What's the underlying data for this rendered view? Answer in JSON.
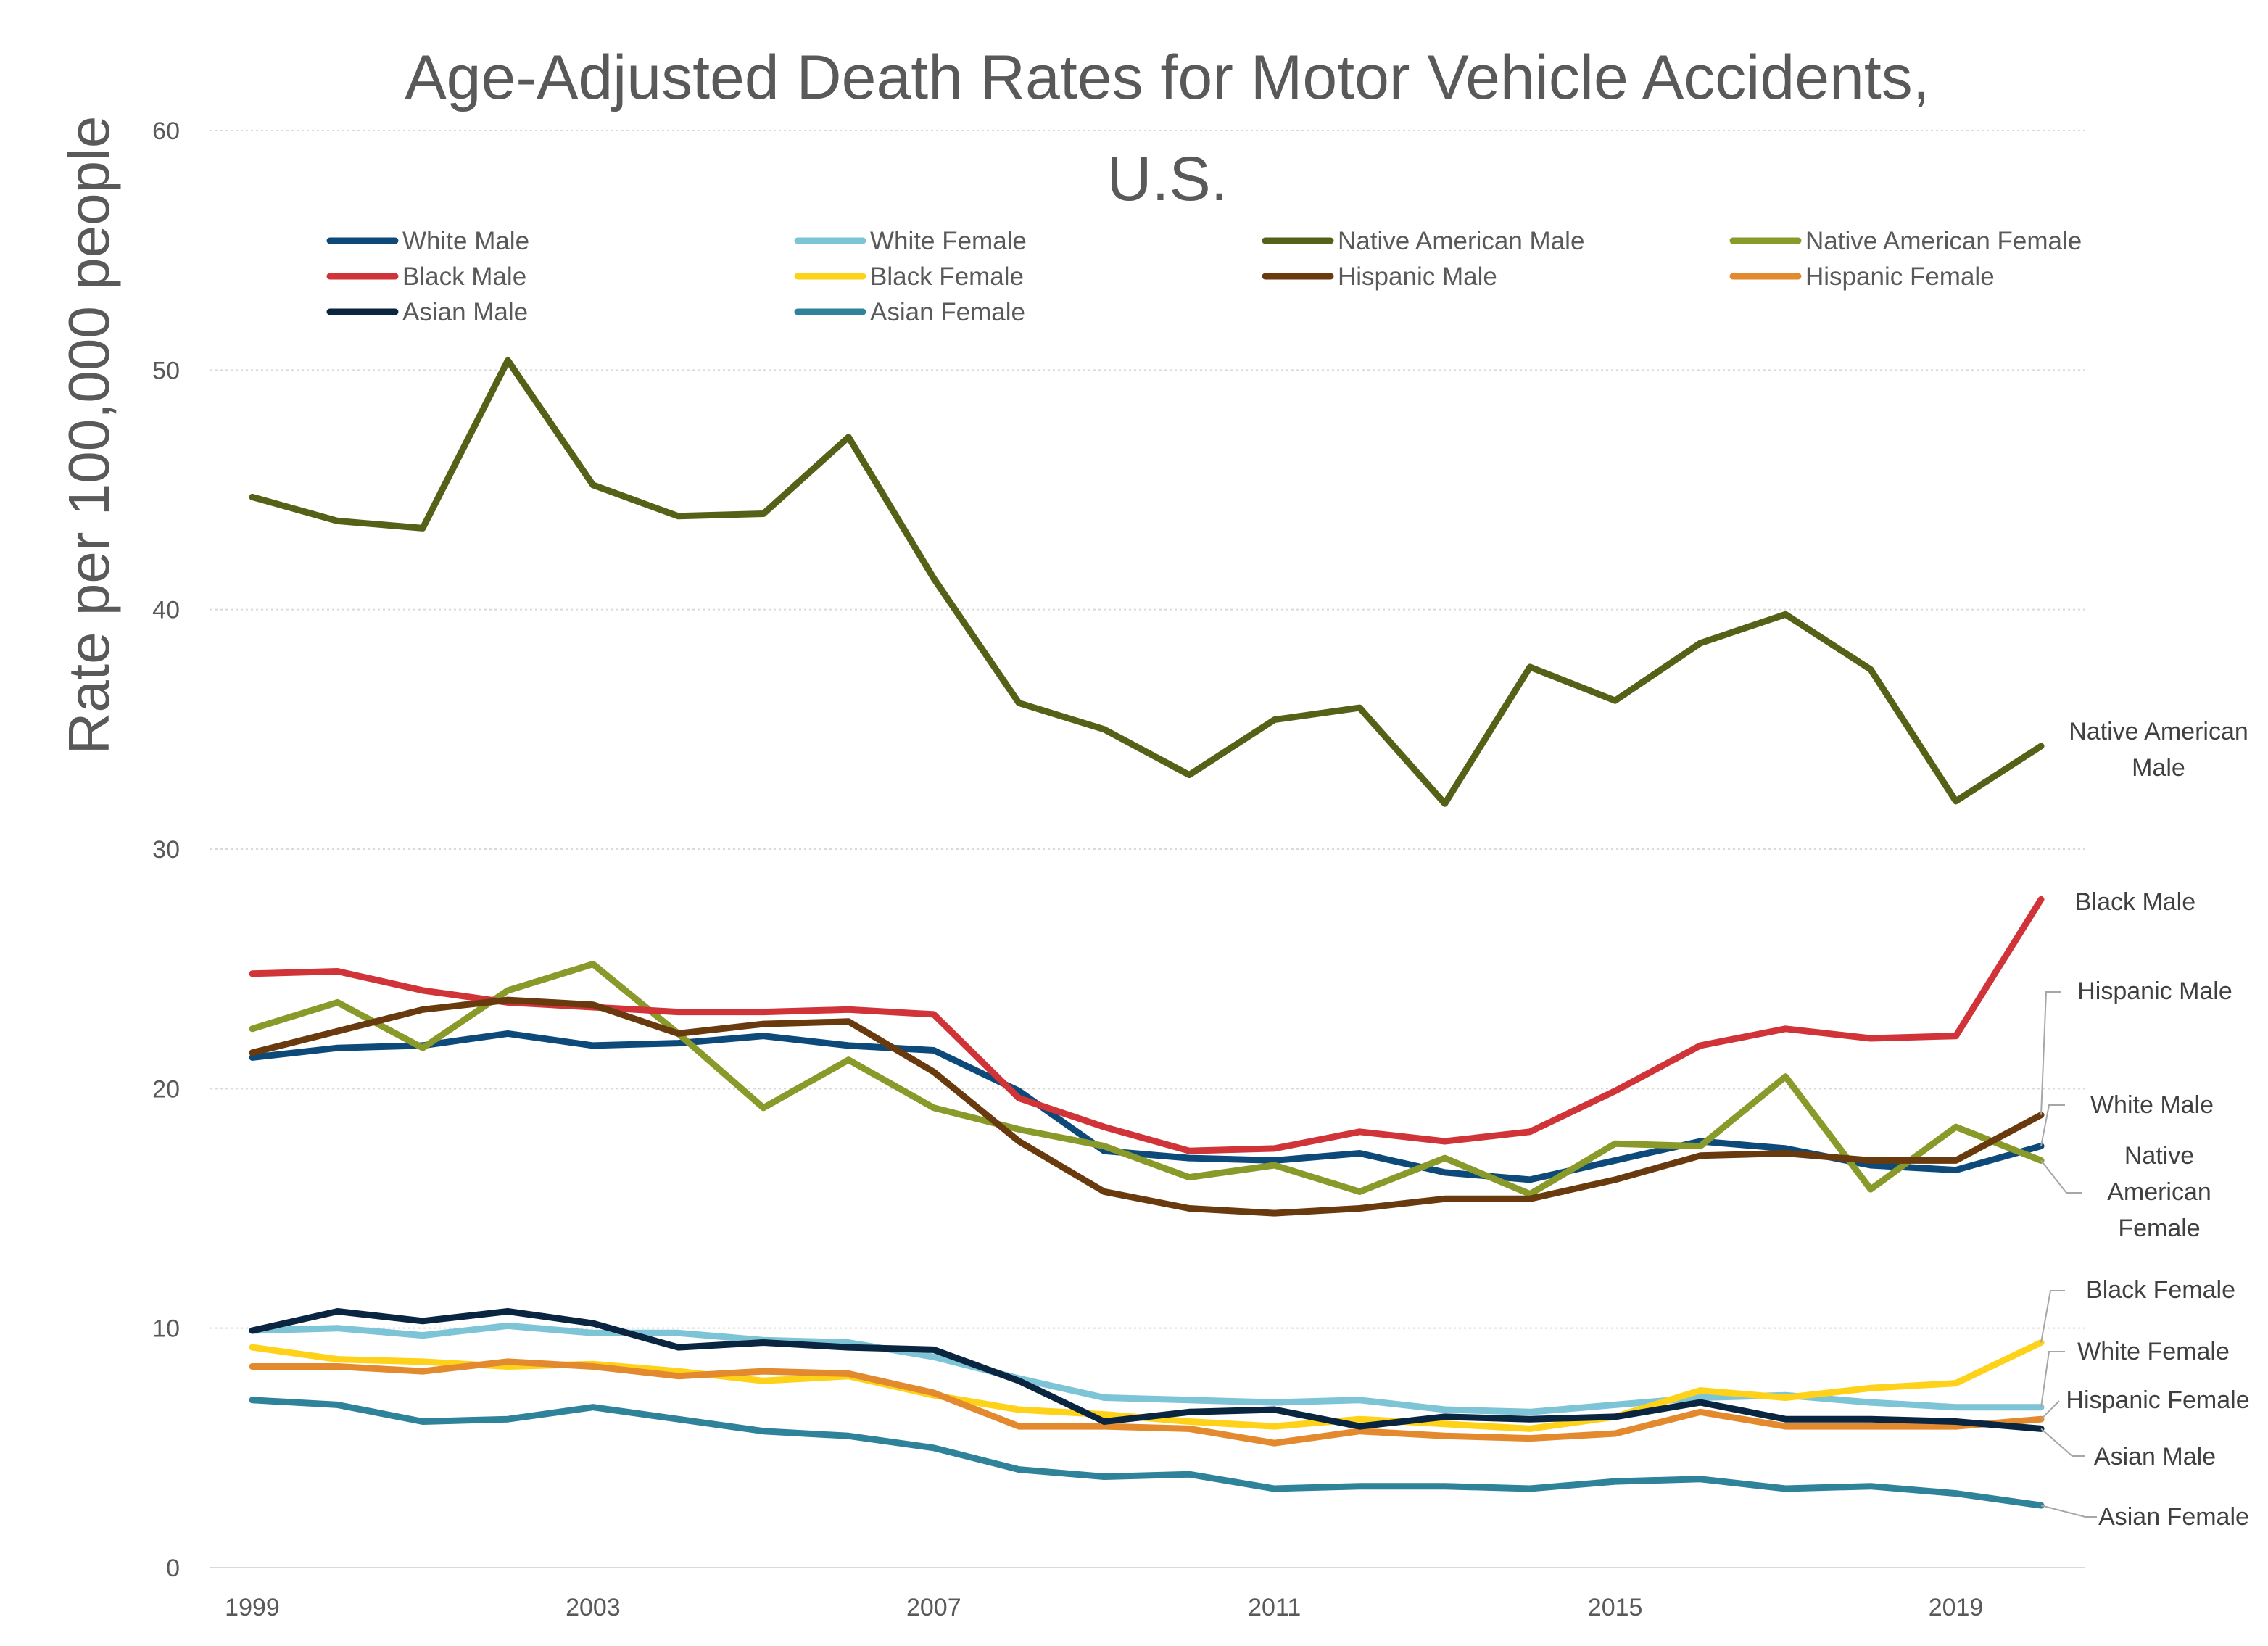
{
  "chart_data": {
    "type": "line",
    "title": "Age-Adjusted Death Rates for Motor Vehicle Accidents, U.S.",
    "title_lines": [
      "Age-Adjusted Death Rates for Motor Vehicle Accidents,",
      "U.S."
    ],
    "ylabel": "Rate per 100,000 people",
    "xlabel": "",
    "ylim": [
      0,
      60
    ],
    "yticks": [
      0,
      10,
      20,
      30,
      40,
      50,
      60
    ],
    "xticks": [
      1999,
      2003,
      2007,
      2011,
      2015,
      2019
    ],
    "grid": true,
    "legend_position": "top",
    "x": [
      1999,
      2000,
      2001,
      2002,
      2003,
      2004,
      2005,
      2006,
      2007,
      2008,
      2009,
      2010,
      2011,
      2012,
      2013,
      2014,
      2015,
      2016,
      2017,
      2018,
      2019,
      2020
    ],
    "series": [
      {
        "name": "White Male",
        "color": "#0d4a7a",
        "values": [
          21.3,
          21.7,
          21.8,
          22.3,
          21.8,
          21.9,
          22.2,
          21.8,
          21.6,
          19.9,
          17.4,
          17.1,
          17.0,
          17.3,
          16.5,
          16.2,
          17.0,
          17.8,
          17.5,
          16.8,
          16.6,
          17.6
        ]
      },
      {
        "name": "White Female",
        "color": "#7cc4d6",
        "values": [
          9.9,
          10.0,
          9.7,
          10.1,
          9.8,
          9.8,
          9.5,
          9.4,
          8.8,
          7.9,
          7.1,
          7.0,
          6.9,
          7.0,
          6.6,
          6.5,
          6.8,
          7.1,
          7.2,
          6.9,
          6.7,
          6.7
        ]
      },
      {
        "name": "Native American Male",
        "color": "#556117",
        "values": [
          44.7,
          43.7,
          43.4,
          50.4,
          45.2,
          43.9,
          44.0,
          47.2,
          41.3,
          36.1,
          35.0,
          33.1,
          35.4,
          35.9,
          31.9,
          37.6,
          36.2,
          38.6,
          39.8,
          37.5,
          32.0,
          34.3
        ]
      },
      {
        "name": "Native American Female",
        "color": "#8a9a2a",
        "values": [
          22.5,
          23.6,
          21.7,
          24.1,
          25.2,
          22.3,
          19.2,
          21.2,
          19.2,
          18.3,
          17.6,
          16.3,
          16.8,
          15.7,
          17.1,
          15.6,
          17.7,
          17.6,
          20.5,
          15.8,
          18.4,
          17.0
        ]
      },
      {
        "name": "Black Male",
        "color": "#d13438",
        "values": [
          24.8,
          24.9,
          24.1,
          23.6,
          23.4,
          23.2,
          23.2,
          23.3,
          23.1,
          19.6,
          18.4,
          17.4,
          17.5,
          18.2,
          17.8,
          18.2,
          19.9,
          21.8,
          22.5,
          22.1,
          22.2,
          27.9
        ]
      },
      {
        "name": "Black Female",
        "color": "#ffd21a",
        "values": [
          9.2,
          8.7,
          8.6,
          8.4,
          8.5,
          8.2,
          7.8,
          8.0,
          7.2,
          6.6,
          6.4,
          6.1,
          5.9,
          6.2,
          6.0,
          5.8,
          6.3,
          7.4,
          7.1,
          7.5,
          7.7,
          9.4
        ]
      },
      {
        "name": "Hispanic Male",
        "color": "#6a3a0f",
        "values": [
          21.5,
          22.4,
          23.3,
          23.7,
          23.5,
          22.3,
          22.7,
          22.8,
          20.7,
          17.8,
          15.7,
          15.0,
          14.8,
          15.0,
          15.4,
          15.4,
          16.2,
          17.2,
          17.3,
          17.0,
          17.0,
          18.9
        ]
      },
      {
        "name": "Hispanic Female",
        "color": "#e48a2e",
        "values": [
          8.4,
          8.4,
          8.2,
          8.6,
          8.4,
          8.0,
          8.2,
          8.1,
          7.3,
          5.9,
          5.9,
          5.8,
          5.2,
          5.7,
          5.5,
          5.4,
          5.6,
          6.5,
          5.9,
          5.9,
          5.9,
          6.2
        ]
      },
      {
        "name": "Asian Male",
        "color": "#0a2540",
        "values": [
          9.9,
          10.7,
          10.3,
          10.7,
          10.2,
          9.2,
          9.4,
          9.2,
          9.1,
          7.8,
          6.1,
          6.5,
          6.6,
          5.9,
          6.3,
          6.2,
          6.3,
          6.9,
          6.2,
          6.2,
          6.1,
          5.8
        ]
      },
      {
        "name": "Asian Female",
        "color": "#2e8299",
        "values": [
          7.0,
          6.8,
          6.1,
          6.2,
          6.7,
          6.2,
          5.7,
          5.5,
          5.0,
          4.1,
          3.8,
          3.9,
          3.3,
          3.4,
          3.4,
          3.3,
          3.6,
          3.7,
          3.3,
          3.4,
          3.1,
          2.6
        ]
      }
    ],
    "end_labels": [
      {
        "series": "Native American Male",
        "lines": [
          "Native American",
          "Male"
        ]
      },
      {
        "series": "Black Male",
        "lines": [
          "Black Male"
        ]
      },
      {
        "series": "Hispanic Male",
        "lines": [
          "Hispanic Male"
        ]
      },
      {
        "series": "White Male",
        "lines": [
          "White Male"
        ]
      },
      {
        "series": "Native American Female",
        "lines": [
          "Native",
          "American",
          "Female"
        ]
      },
      {
        "series": "Black Female",
        "lines": [
          "Black Female"
        ]
      },
      {
        "series": "White Female",
        "lines": [
          "White Female"
        ]
      },
      {
        "series": "Hispanic Female",
        "lines": [
          "Hispanic Female"
        ]
      },
      {
        "series": "Asian Male",
        "lines": [
          "Asian Male"
        ]
      },
      {
        "series": "Asian Female",
        "lines": [
          "Asian Female"
        ]
      }
    ]
  }
}
